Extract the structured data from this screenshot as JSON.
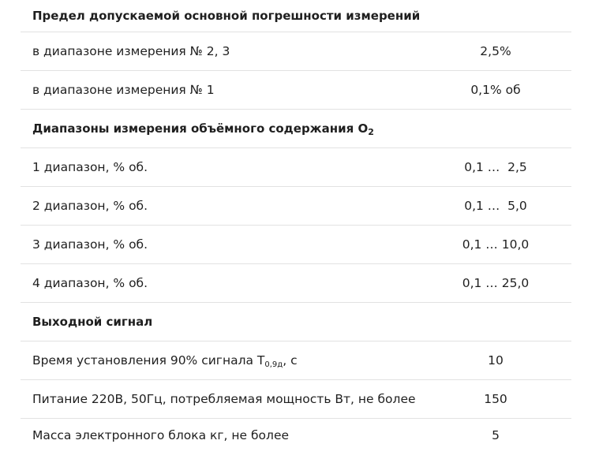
{
  "rows": [
    {
      "type": "section",
      "label": "Предел допускаемой основной погрешности измерений",
      "sub": "",
      "suffix": ""
    },
    {
      "type": "item",
      "label": "в диапазоне измерения № 2, 3",
      "sub": "",
      "suffix": "",
      "value": "2,5%"
    },
    {
      "type": "item",
      "label": "в диапазоне измерения № 1",
      "sub": "",
      "suffix": "",
      "value": "0,1% об"
    },
    {
      "type": "section",
      "label": "Диапазоны измерения объёмного содержания O",
      "sub": "2",
      "suffix": ""
    },
    {
      "type": "item",
      "label": "1 диапазон, % об.",
      "sub": "",
      "suffix": "",
      "value": "0,1 …  2,5"
    },
    {
      "type": "item",
      "label": "2 диапазон, % об.",
      "sub": "",
      "suffix": "",
      "value": "0,1 …  5,0"
    },
    {
      "type": "item",
      "label": "3 диапазон, % об.",
      "sub": "",
      "suffix": "",
      "value": "0,1 … 10,0"
    },
    {
      "type": "item",
      "label": "4 диапазон, % об.",
      "sub": "",
      "suffix": "",
      "value": "0,1 … 25,0"
    },
    {
      "type": "section",
      "label": "Выходной сигнал",
      "sub": "",
      "suffix": ""
    },
    {
      "type": "item",
      "label": "Время установления 90% сигнала Т",
      "sub": "0,9д",
      "suffix": ", с",
      "value": "10"
    },
    {
      "type": "item",
      "label": "Питание 220В, 50Гц, потребляемая мощность Вт, не более",
      "sub": "",
      "suffix": "",
      "value": "150"
    },
    {
      "type": "item",
      "label": "Масса электронного блока кг, не более",
      "sub": "",
      "suffix": "",
      "value": "5"
    }
  ]
}
